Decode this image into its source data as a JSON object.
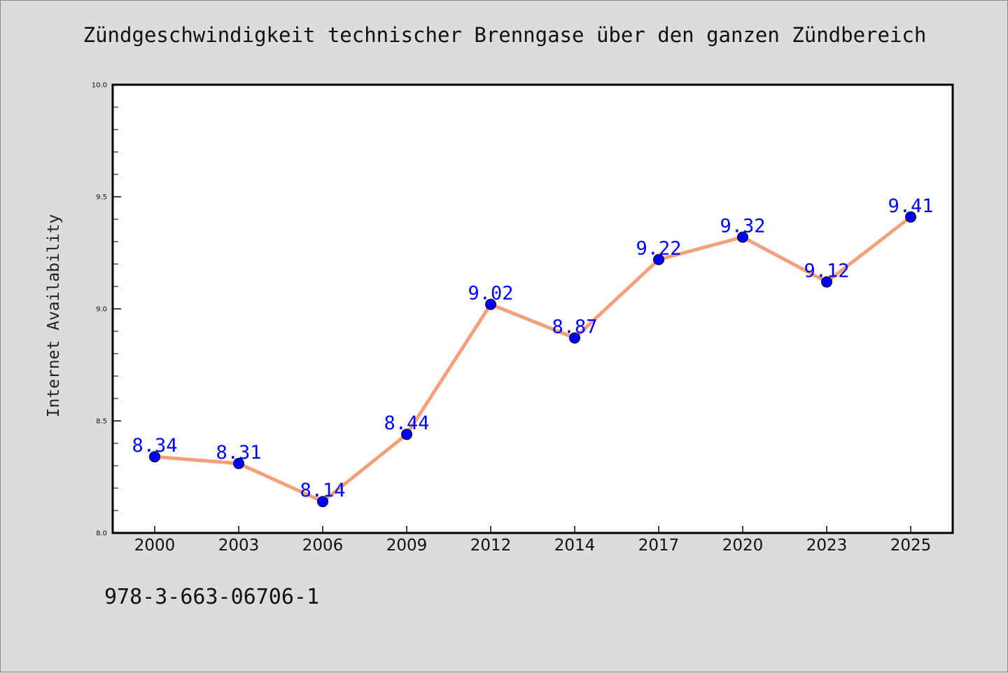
{
  "chart_data": {
    "type": "line",
    "title": "Zündgeschwindigkeit technischer Brenngase über den ganzen Zündbereich",
    "xlabel": "",
    "ylabel": "Internet Availability",
    "categories": [
      "2000",
      "2003",
      "2006",
      "2009",
      "2012",
      "2014",
      "2017",
      "2020",
      "2023",
      "2025"
    ],
    "series": [
      {
        "values": [
          8.34,
          8.31,
          8.14,
          8.44,
          9.02,
          8.87,
          9.22,
          9.32,
          9.12,
          9.41
        ]
      }
    ],
    "data_labels": [
      "8.34",
      "8.31",
      "8.14",
      "8.44",
      "9.02",
      "8.87",
      "9.22",
      "9.32",
      "9.12",
      "9.41"
    ],
    "ylim": [
      8.0,
      10.0
    ],
    "y_ticks": [
      "8.0",
      "8.5",
      "9.0",
      "9.5",
      "10.0"
    ],
    "grid": false,
    "colors": {
      "line": "#f4a07c",
      "marker": "#0000ff",
      "data_label": "#0000ff",
      "background": "#dcdcdc",
      "plot_background": "#ffffff"
    }
  },
  "footer": {
    "isbn": "978-3-663-06706-1"
  }
}
